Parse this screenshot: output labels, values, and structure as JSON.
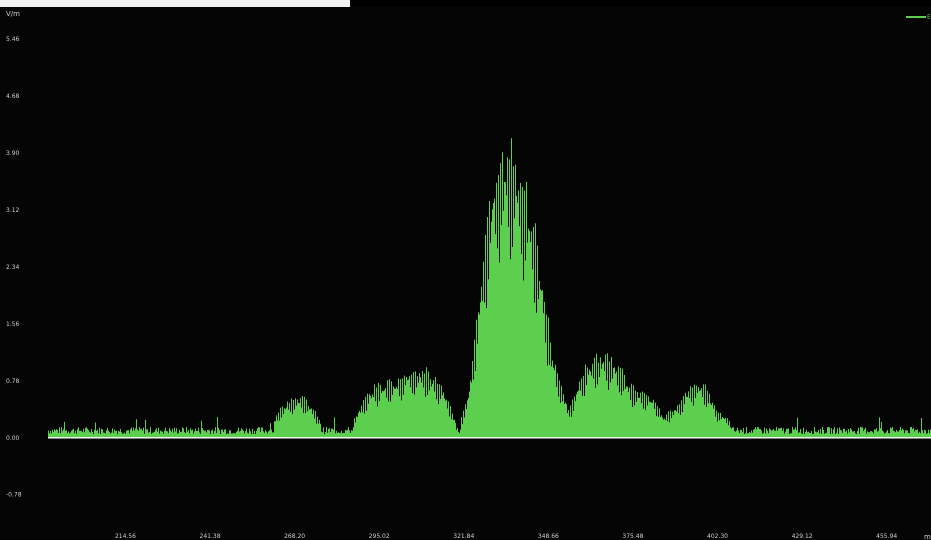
{
  "chart_data": {
    "type": "line",
    "title": "",
    "ylabel": "V/m",
    "xlabel": "m",
    "legend": {
      "label": "E",
      "placement": "top-right"
    },
    "colors": {
      "series": "#5dcf4f",
      "background": "#050505",
      "zero_line": "#ffffff"
    },
    "grid": false,
    "xlim": [
      190.0,
      470.0
    ],
    "ylim": [
      -1.4,
      5.9
    ],
    "x_ticks": [
      "214.56",
      "241.38",
      "268.20",
      "295.02",
      "321.84",
      "348.66",
      "375.48",
      "402.30",
      "429.12",
      "455.94"
    ],
    "y_ticks": [
      "5.46",
      "4.68",
      "3.90",
      "3.12",
      "2.34",
      "1.56",
      "0.78",
      "0.00",
      "-0.78"
    ],
    "series": [
      {
        "name": "E",
        "x": [
          190,
          260,
          263,
          266,
          269,
          272,
          275,
          278,
          285,
          290,
          293,
          296,
          300,
          303,
          306,
          309,
          312,
          315,
          320,
          323,
          326,
          329,
          332,
          335,
          338,
          341,
          344,
          347,
          350,
          355,
          358,
          361,
          364,
          367,
          370,
          373,
          376,
          379,
          382,
          385,
          390,
          393,
          396,
          399,
          402,
          410,
          420,
          430,
          440,
          450,
          470
        ],
        "y": [
          0.1,
          0.1,
          0.4,
          0.55,
          0.62,
          0.55,
          0.35,
          0.12,
          0.1,
          0.55,
          0.75,
          0.8,
          0.85,
          0.95,
          1.02,
          1.0,
          0.9,
          0.75,
          0.15,
          0.6,
          1.8,
          3.2,
          4.1,
          4.3,
          4.2,
          3.8,
          3.1,
          2.2,
          1.2,
          0.4,
          0.8,
          1.1,
          1.2,
          1.2,
          1.1,
          0.9,
          0.7,
          0.65,
          0.6,
          0.3,
          0.5,
          0.75,
          0.85,
          0.7,
          0.4,
          0.12,
          0.1,
          0.12,
          0.1,
          0.12,
          0.1
        ]
      }
    ]
  }
}
